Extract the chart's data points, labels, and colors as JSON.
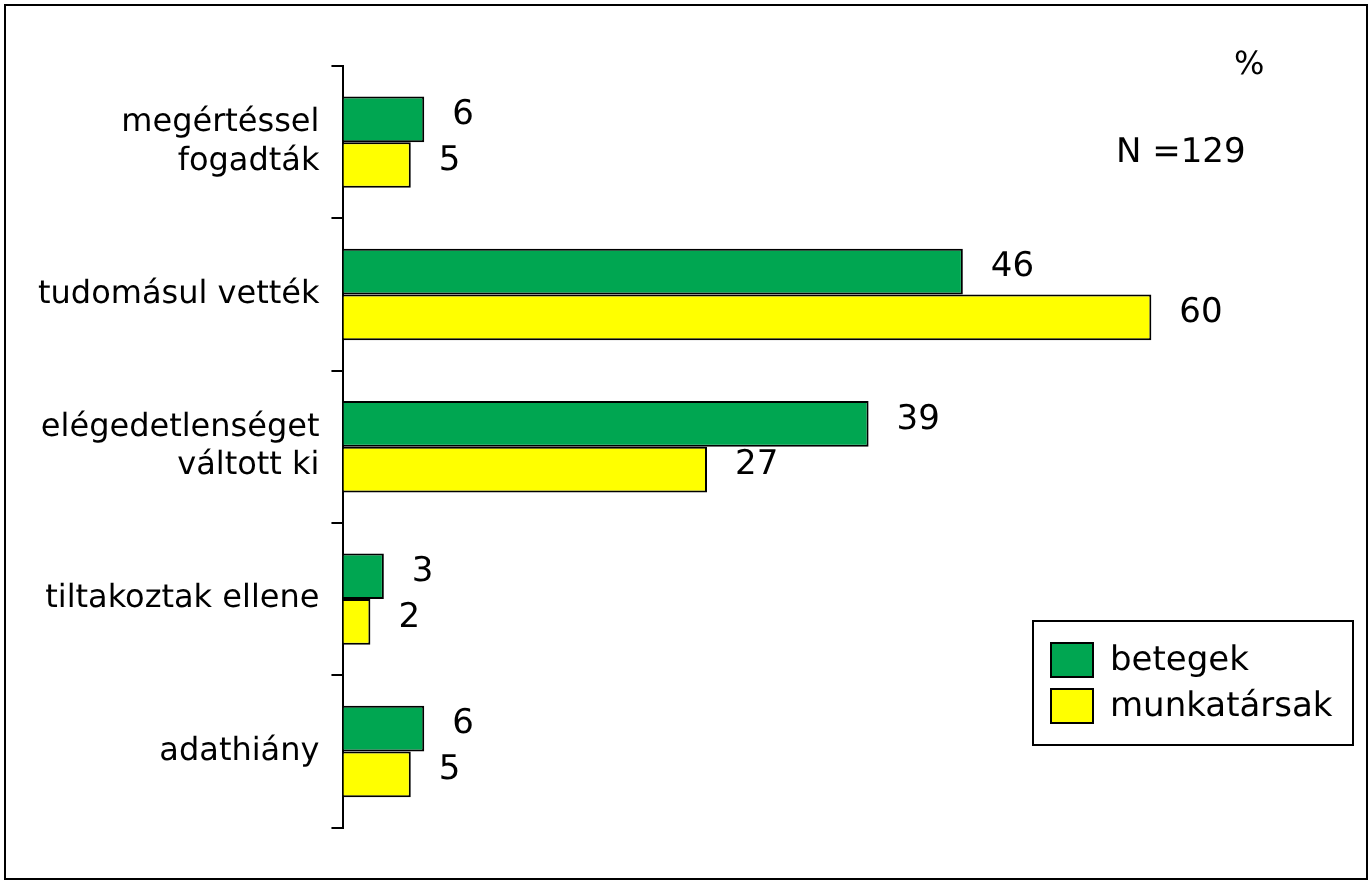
{
  "chart_data": {
    "type": "bar",
    "orientation": "horizontal",
    "categories": [
      "megértéssel fogadták",
      "tudomásul vették",
      "elégedetlenséget váltott ki",
      "tiltakoztak ellene",
      "adathiány"
    ],
    "series": [
      {
        "name": "betegek",
        "color": "#00a651",
        "values": [
          6,
          46,
          39,
          3,
          6
        ]
      },
      {
        "name": "munkatársak",
        "color": "#ffff00",
        "values": [
          5,
          60,
          27,
          2,
          5
        ]
      }
    ],
    "tick_labels": "y",
    "data_labels": true,
    "grid": false,
    "legend": "bottom right",
    "annotations": [
      "%",
      "N =129"
    ]
  }
}
